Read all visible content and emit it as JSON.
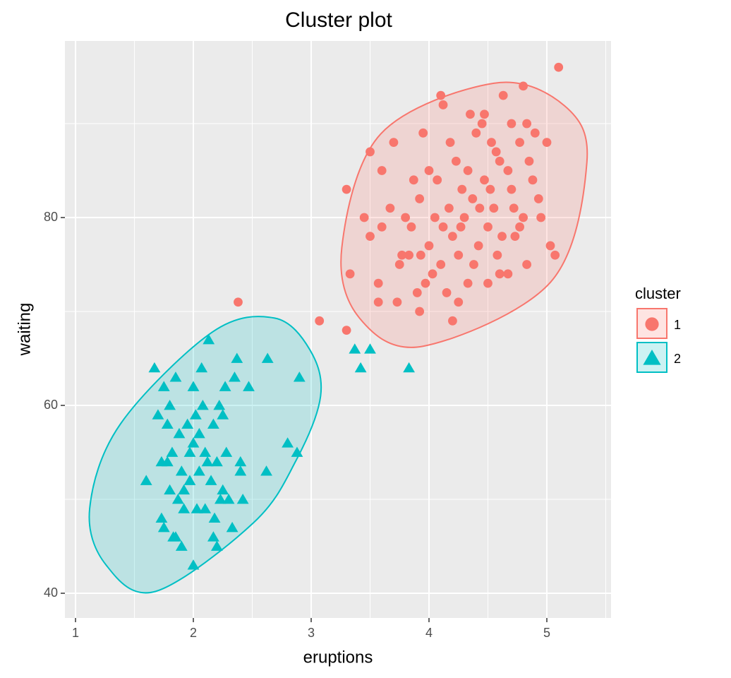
{
  "chart_data": {
    "type": "scatter",
    "title": "Cluster plot",
    "x_label": "eruptions",
    "y_label": "waiting",
    "xlim": [
      0.91,
      5.545
    ],
    "ylim": [
      37.37,
      98.8
    ],
    "xticks": [
      1,
      2,
      3,
      4,
      5
    ],
    "yticks": [
      40,
      60,
      80
    ],
    "grid": true,
    "legend": {
      "title": "cluster",
      "position": "right"
    },
    "series": [
      {
        "name": "1",
        "color": "#F8766D",
        "marker": "circle",
        "x": [
          3.33,
          3.3,
          3.3,
          3.5,
          3.57,
          3.57,
          3.6,
          3.6,
          3.73,
          3.75,
          3.8,
          3.83,
          3.87,
          3.9,
          3.92,
          3.92,
          3.95,
          4.0,
          4.03,
          4.07,
          4.1,
          4.1,
          4.12,
          4.17,
          4.2,
          4.2,
          4.23,
          4.25,
          4.28,
          4.3,
          4.33,
          4.35,
          4.37,
          4.4,
          4.42,
          4.45,
          4.47,
          4.5,
          4.5,
          4.53,
          4.55,
          4.58,
          4.6,
          4.63,
          4.67,
          4.7,
          4.7,
          4.73,
          4.77,
          4.8,
          4.8,
          4.83,
          4.85,
          4.9,
          4.93,
          5.0,
          5.03,
          5.07,
          5.1,
          3.5,
          3.67,
          3.7,
          3.77,
          3.85,
          3.93,
          4.0,
          4.05,
          4.15,
          4.18,
          4.27,
          4.33,
          4.38,
          4.43,
          4.47,
          4.52,
          4.57,
          4.62,
          4.67,
          4.72,
          4.77,
          4.88,
          4.95,
          3.45,
          3.97,
          4.12,
          4.25,
          4.6,
          4.83,
          3.07,
          2.38
        ],
        "y": [
          74,
          83,
          68,
          87,
          73,
          71,
          85,
          79,
          71,
          75,
          80,
          76,
          84,
          72,
          70,
          82,
          89,
          77,
          74,
          84,
          93,
          75,
          92,
          81,
          78,
          69,
          86,
          76,
          83,
          80,
          73,
          91,
          82,
          89,
          77,
          90,
          84,
          79,
          73,
          88,
          81,
          76,
          86,
          93,
          74,
          83,
          90,
          78,
          88,
          94,
          80,
          75,
          86,
          89,
          82,
          88,
          77,
          76,
          96,
          78,
          81,
          88,
          76,
          79,
          76,
          85,
          80,
          72,
          88,
          79,
          85,
          75,
          81,
          91,
          83,
          87,
          78,
          85,
          81,
          79,
          84,
          80,
          80,
          73,
          79,
          71,
          74,
          90,
          69,
          71
        ],
        "ellipse": {
          "x": [
            4.55,
            5.15,
            5.34,
            5.03,
            3.95,
            3.41,
            3.26,
            3.59
          ],
          "y": [
            94.3,
            91.9,
            85.9,
            73.1,
            66.3,
            69.3,
            76.8,
            88.9
          ]
        }
      },
      {
        "name": "2",
        "color": "#00BFC4",
        "marker": "triangle",
        "x": [
          1.6,
          1.67,
          1.7,
          1.73,
          1.75,
          1.75,
          1.78,
          1.8,
          1.8,
          1.82,
          1.83,
          1.85,
          1.87,
          1.88,
          1.9,
          1.9,
          1.92,
          1.95,
          1.97,
          2.0,
          2.0,
          2.0,
          2.02,
          2.03,
          2.05,
          2.07,
          2.08,
          2.1,
          2.1,
          2.13,
          2.15,
          2.17,
          2.17,
          2.2,
          2.2,
          2.22,
          2.23,
          2.25,
          2.27,
          2.28,
          2.3,
          2.33,
          2.35,
          2.37,
          2.4,
          2.42,
          2.47,
          2.62,
          2.63,
          2.8,
          2.88,
          2.9,
          1.73,
          1.78,
          1.85,
          1.92,
          1.97,
          2.05,
          2.12,
          2.18,
          2.25,
          2.4,
          3.37,
          3.5,
          3.42,
          3.83
        ],
        "y": [
          52,
          64,
          59,
          54,
          62,
          47,
          58,
          51,
          60,
          55,
          46,
          63,
          50,
          57,
          45,
          53,
          49,
          58,
          52,
          62,
          43,
          56,
          59,
          49,
          53,
          64,
          60,
          55,
          49,
          67,
          52,
          46,
          58,
          45,
          54,
          60,
          50,
          59,
          62,
          55,
          50,
          47,
          63,
          65,
          53,
          50,
          62,
          53,
          65,
          56,
          55,
          63,
          48,
          54,
          46,
          51,
          55,
          57,
          54,
          48,
          51,
          54,
          66,
          66,
          64,
          64
        ],
        "ellipse": {
          "x": [
            2.69,
            2.99,
            3.08,
            2.87,
            2.51,
            1.68,
            1.26,
            1.12,
            1.38,
            2.16
          ],
          "y": [
            69.3,
            65.9,
            61.0,
            54.1,
            47.5,
            40.2,
            43.0,
            49.0,
            58.0,
            67.8
          ]
        }
      }
    ]
  }
}
